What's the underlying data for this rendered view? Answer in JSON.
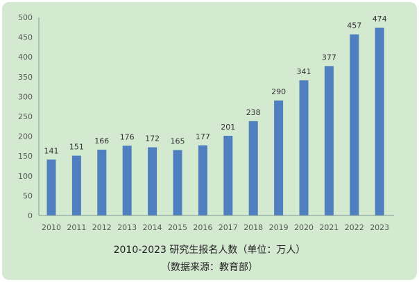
{
  "chart_data": {
    "type": "bar",
    "title": "2010-2023 研究生报名人数（单位：万人）",
    "subtitle": "（数据来源：教育部）",
    "categories": [
      "2010",
      "2011",
      "2012",
      "2013",
      "2014",
      "2015",
      "2016",
      "2017",
      "2018",
      "2019",
      "2020",
      "2021",
      "2022",
      "2023"
    ],
    "values": [
      141,
      151,
      166,
      176,
      172,
      165,
      177,
      201,
      238,
      290,
      341,
      377,
      457,
      474
    ],
    "ylim": [
      0,
      500
    ],
    "yticks": [
      0,
      50,
      100,
      150,
      200,
      250,
      300,
      350,
      400,
      450,
      500
    ],
    "grid": false,
    "data_labels": true,
    "colors": {
      "bar": "#4f7fbf",
      "background": "#d3e9d0",
      "axis": "#7f9a96"
    }
  }
}
